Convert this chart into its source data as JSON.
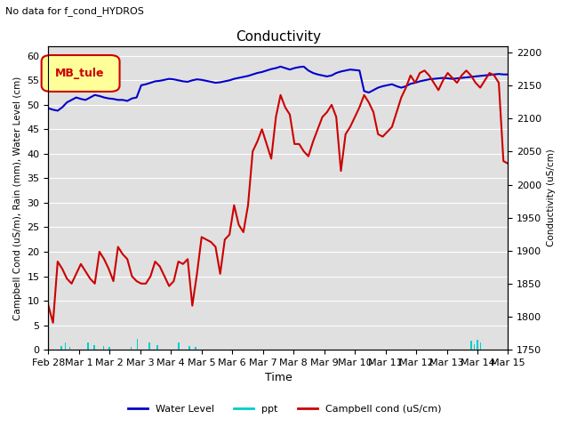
{
  "title": "Conductivity",
  "subtitle": "No data for f_cond_HYDROS",
  "xlabel": "Time",
  "ylabel_left": "Campbell Cond (uS/m), Rain (mm), Water Level (cm)",
  "ylabel_right": "Conductivity (uS/cm)",
  "ylim_left": [
    0,
    62
  ],
  "ylim_right": [
    1750,
    2210
  ],
  "legend_box_label": "MB_tule",
  "legend_box_color": "#cc0000",
  "legend_box_bg": "#ffff99",
  "xtick_labels": [
    "Feb 28",
    "Mar 1",
    "Mar 2",
    "Mar 3",
    "Mar 4",
    "Mar 5",
    "Mar 6",
    "Mar 7",
    "Mar 8",
    "Mar 9",
    "Mar 10",
    "Mar 11",
    "Mar 12",
    "Mar 13",
    "Mar 14",
    "Mar 15"
  ],
  "bg_color": "#e0e0e0",
  "water_level_color": "#0000cc",
  "ppt_color": "#00cccc",
  "campbell_color": "#cc0000",
  "water_level_data": [
    49.3,
    49.0,
    48.8,
    49.5,
    50.5,
    51.0,
    51.5,
    51.2,
    51.0,
    51.5,
    52.0,
    51.8,
    51.5,
    51.3,
    51.2,
    51.0,
    51.0,
    50.8,
    51.3,
    51.5,
    54.0,
    54.2,
    54.5,
    54.8,
    54.9,
    55.1,
    55.3,
    55.2,
    55.0,
    54.8,
    54.7,
    55.0,
    55.2,
    55.1,
    54.9,
    54.7,
    54.5,
    54.6,
    54.8,
    55.0,
    55.3,
    55.5,
    55.7,
    55.9,
    56.2,
    56.5,
    56.7,
    57.0,
    57.3,
    57.5,
    57.8,
    57.5,
    57.2,
    57.5,
    57.7,
    57.8,
    57.0,
    56.5,
    56.2,
    56.0,
    55.8,
    56.0,
    56.5,
    56.8,
    57.0,
    57.2,
    57.1,
    57.0,
    52.8,
    52.5,
    53.0,
    53.5,
    53.8,
    54.0,
    54.2,
    53.8,
    53.5,
    53.8,
    54.3,
    54.5,
    54.8,
    55.0,
    55.2,
    55.3,
    55.4,
    55.5,
    55.4,
    55.3,
    55.4,
    55.5,
    55.6,
    55.7,
    55.8,
    55.9,
    56.0,
    56.1,
    56.2,
    56.3,
    56.2,
    56.2
  ],
  "ppt_data_x": [
    0.43,
    0.55,
    0.7,
    1.3,
    1.5,
    1.8,
    2.0,
    2.7,
    2.9,
    3.3,
    3.55,
    4.25,
    4.6,
    4.8,
    13.8,
    13.9,
    14.0,
    14.1
  ],
  "ppt_data_y": [
    0.8,
    1.5,
    0.5,
    1.5,
    1.0,
    0.7,
    0.5,
    0.5,
    2.2,
    1.5,
    1.0,
    1.5,
    0.8,
    0.5,
    1.8,
    1.2,
    2.0,
    1.5
  ],
  "campbell_data": [
    9.0,
    5.5,
    18.0,
    16.5,
    14.5,
    13.5,
    15.5,
    17.5,
    16.0,
    14.5,
    13.5,
    20.0,
    18.5,
    16.5,
    14.0,
    21.0,
    19.5,
    18.5,
    15.0,
    14.0,
    13.5,
    13.5,
    15.0,
    18.0,
    17.0,
    15.0,
    13.0,
    14.0,
    18.0,
    17.5,
    18.5,
    9.0,
    15.5,
    23.0,
    22.5,
    22.0,
    21.0,
    15.5,
    22.5,
    23.5,
    29.5,
    25.5,
    24.0,
    29.5,
    40.5,
    42.5,
    45.0,
    42.0,
    39.0,
    47.5,
    52.0,
    49.5,
    48.0,
    42.0,
    42.0,
    40.5,
    39.5,
    42.5,
    45.0,
    47.5,
    48.5,
    50.0,
    47.5,
    36.5,
    44.0,
    45.5,
    47.5,
    49.5,
    52.0,
    50.5,
    48.5,
    44.0,
    43.5,
    44.5,
    45.5,
    48.5,
    51.5,
    53.5,
    56.0,
    54.5,
    56.5,
    57.0,
    56.0,
    54.5,
    53.0,
    55.0,
    56.5,
    55.5,
    54.5,
    56.0,
    57.0,
    56.0,
    54.5,
    53.5,
    55.0,
    56.5,
    56.0,
    54.5,
    38.5,
    38.0
  ]
}
